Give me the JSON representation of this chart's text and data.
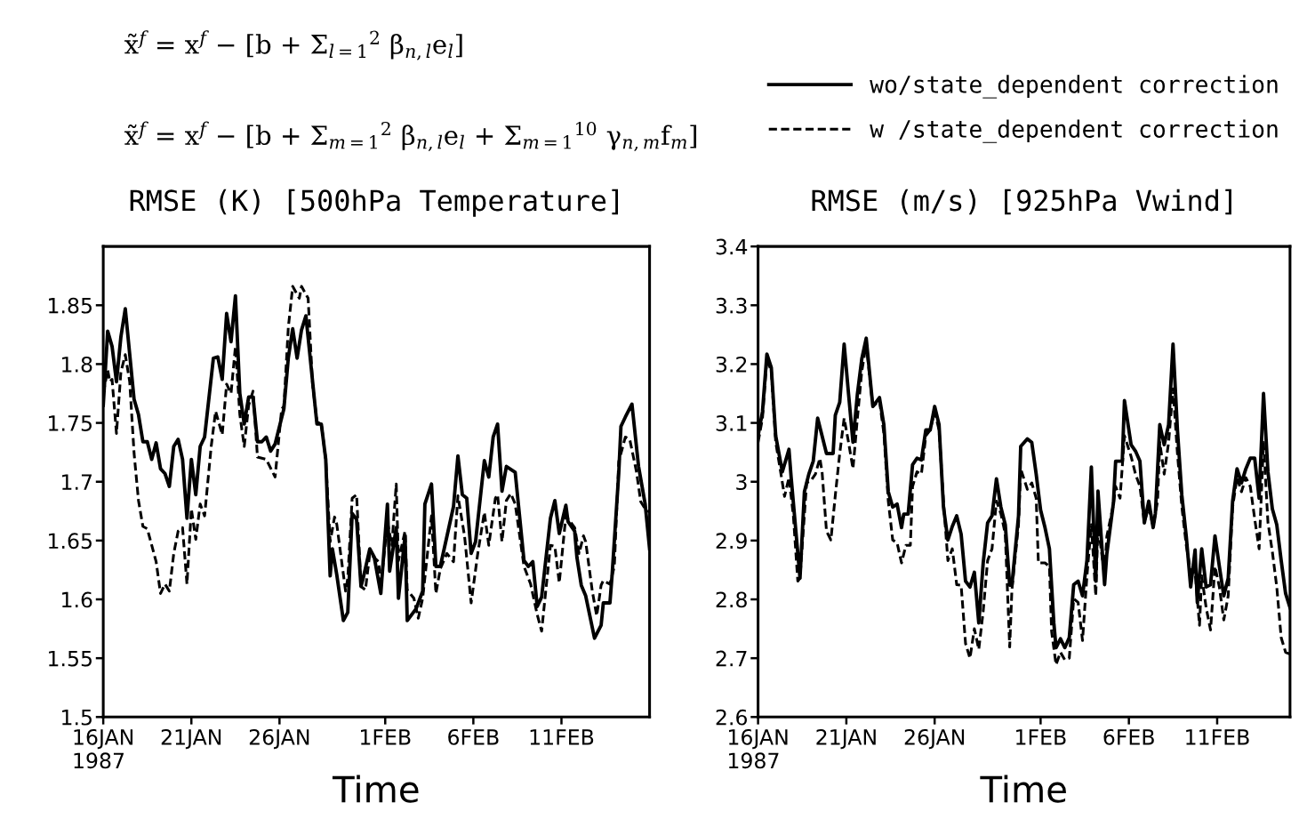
{
  "chart_data": [
    {
      "type": "line",
      "title": "RMSE (K) [500hPa Temperature]",
      "xlabel": "Time",
      "legend": "top right",
      "annotations": [
        "x̃$^{f}$ = x$^{f}$ − [b + Σ$_{l=1}$$^{2}$ β$_{n,l}$e$_{l}$]",
        "x̃$^{f}$ = x$^{f}$ − [b + Σ$_{m=1}$$^{2}$ β$_{n,l}$e$_{l}$ + Σ$_{m=1}$$^{10}$ γ$_{n,m}$f$_{m}$]"
      ],
      "xlim": [
        "1987-01-16T00:00",
        "1987-02-16T00:00"
      ],
      "xticks": [
        {
          "value": "1987-01-16",
          "label": "16JAN\n1987"
        },
        {
          "value": "1987-01-21",
          "label": "21JAN"
        },
        {
          "value": "1987-01-26",
          "label": "26JAN"
        },
        {
          "value": "1987-02-01",
          "label": "1FEB"
        },
        {
          "value": "1987-02-06",
          "label": "6FEB"
        },
        {
          "value": "1987-02-11",
          "label": "11FEB"
        }
      ],
      "ylim": [
        1.5,
        1.9
      ],
      "yticks": [
        1.5,
        1.55,
        1.6,
        1.65,
        1.7,
        1.75,
        1.8,
        1.85
      ],
      "grid": false,
      "series": [
        {
          "name": "wo/state_dependent correction",
          "color": "#000000",
          "line_style": "solid",
          "x": [
            "1987-01-16T00:00",
            "1987-01-16T06:00",
            "1987-01-16T12:00",
            "1987-01-16T18:00",
            "1987-01-17T00:00",
            "1987-01-17T06:00",
            "1987-01-17T18:00",
            "1987-01-18T00:00",
            "1987-01-18T06:00",
            "1987-01-18T12:00",
            "1987-01-18T18:00",
            "1987-01-19T00:00",
            "1987-01-19T06:00",
            "1987-01-19T12:00",
            "1987-01-19T18:00",
            "1987-01-20T00:00",
            "1987-01-20T06:00",
            "1987-01-20T12:00",
            "1987-01-20T18:00",
            "1987-01-21T00:00",
            "1987-01-21T06:00",
            "1987-01-21T12:00",
            "1987-01-21T18:00",
            "1987-01-22T06:00",
            "1987-01-22T12:00",
            "1987-01-22T18:00",
            "1987-01-23T00:00",
            "1987-01-23T06:00",
            "1987-01-23T12:00",
            "1987-01-23T18:00",
            "1987-01-24T00:00",
            "1987-01-24T06:00",
            "1987-01-24T12:00",
            "1987-01-24T18:00",
            "1987-01-25T00:00",
            "1987-01-25T06:00",
            "1987-01-25T12:00",
            "1987-01-25T18:00",
            "1987-01-26T06:00",
            "1987-01-26T12:00",
            "1987-01-26T18:00",
            "1987-01-27T00:00",
            "1987-01-27T06:00",
            "1987-01-27T12:00",
            "1987-01-28T03:00",
            "1987-01-28T09:00",
            "1987-01-28T15:00",
            "1987-01-28T21:00",
            "1987-01-29T00:00",
            "1987-01-29T06:00",
            "1987-01-29T15:00",
            "1987-01-29T21:00",
            "1987-01-30T03:00",
            "1987-01-30T09:00",
            "1987-01-30T15:00",
            "1987-01-30T18:00",
            "1987-01-31T03:00",
            "1987-01-31T09:00",
            "1987-01-31T18:00",
            "1987-02-01T03:00",
            "1987-02-01T06:00",
            "1987-02-01T15:00",
            "1987-02-01T18:00",
            "1987-02-02T03:00",
            "1987-02-02T06:00",
            "1987-02-02T18:00",
            "1987-02-03T03:00",
            "1987-02-03T06:00",
            "1987-02-03T15:00",
            "1987-02-03T21:00",
            "1987-02-04T03:00",
            "1987-02-04T21:00",
            "1987-02-05T03:00",
            "1987-02-05T09:00",
            "1987-02-05T15:00",
            "1987-02-05T21:00",
            "1987-02-06T03:00",
            "1987-02-06T15:00",
            "1987-02-06T21:00",
            "1987-02-07T03:00",
            "1987-02-07T09:00",
            "1987-02-07T15:00",
            "1987-02-07T21:00",
            "1987-02-08T09:00",
            "1987-02-08T21:00",
            "1987-02-09T03:00",
            "1987-02-09T09:00",
            "1987-02-09T15:00",
            "1987-02-09T21:00",
            "1987-02-10T09:00",
            "1987-02-10T15:00",
            "1987-02-10T21:00",
            "1987-02-11T06:00",
            "1987-02-11T09:00",
            "1987-02-11T18:00",
            "1987-02-11T21:00",
            "1987-02-12T03:00",
            "1987-02-12T09:00",
            "1987-02-12T21:00",
            "1987-02-13T06:00",
            "1987-02-13T09:00",
            "1987-02-13T18:00",
            "1987-02-13T21:00",
            "1987-02-14T06:00",
            "1987-02-14T09:00",
            "1987-02-14T15:00",
            "1987-02-15T00:00",
            "1987-02-15T09:00",
            "1987-02-15T18:00",
            "1987-02-16T00:00"
          ],
          "values": [
            1.765,
            1.828,
            1.815,
            1.785,
            1.823,
            1.847,
            1.77,
            1.757,
            1.734,
            1.734,
            1.719,
            1.733,
            1.711,
            1.707,
            1.696,
            1.73,
            1.736,
            1.719,
            1.669,
            1.719,
            1.689,
            1.73,
            1.738,
            1.805,
            1.806,
            1.787,
            1.843,
            1.819,
            1.858,
            1.775,
            1.749,
            1.772,
            1.772,
            1.734,
            1.734,
            1.738,
            1.726,
            1.732,
            1.762,
            1.805,
            1.83,
            1.805,
            1.829,
            1.841,
            1.749,
            1.749,
            1.719,
            1.62,
            1.643,
            1.621,
            1.582,
            1.589,
            1.673,
            1.668,
            1.611,
            1.618,
            1.643,
            1.636,
            1.605,
            1.681,
            1.624,
            1.661,
            1.601,
            1.654,
            1.582,
            1.592,
            1.607,
            1.681,
            1.698,
            1.628,
            1.628,
            1.679,
            1.722,
            1.689,
            1.686,
            1.639,
            1.649,
            1.718,
            1.704,
            1.738,
            1.749,
            1.692,
            1.713,
            1.708,
            1.633,
            1.628,
            1.632,
            1.594,
            1.602,
            1.669,
            1.684,
            1.656,
            1.68,
            1.666,
            1.658,
            1.636,
            1.612,
            1.603,
            1.567,
            1.578,
            1.597,
            1.597,
            1.621,
            1.707,
            1.747,
            1.755,
            1.766,
            1.713,
            1.681,
            1.643
          ]
        },
        {
          "name": "w /state_dependent correction",
          "color": "#000000",
          "line_style": "dashed",
          "x": [
            "1987-01-16T00:00",
            "1987-01-16T06:00",
            "1987-01-16T09:00",
            "1987-01-16T12:00",
            "1987-01-16T18:00",
            "1987-01-17T00:00",
            "1987-01-17T06:00",
            "1987-01-17T12:00",
            "1987-01-17T18:00",
            "1987-01-18T00:00",
            "1987-01-18T06:00",
            "1987-01-18T12:00",
            "1987-01-18T18:00",
            "1987-01-19T00:00",
            "1987-01-19T06:00",
            "1987-01-19T12:00",
            "1987-01-19T18:00",
            "1987-01-20T00:00",
            "1987-01-20T06:00",
            "1987-01-20T12:00",
            "1987-01-20T18:00",
            "1987-01-21T00:00",
            "1987-01-21T06:00",
            "1987-01-21T12:00",
            "1987-01-21T18:00",
            "1987-01-22T03:00",
            "1987-01-22T09:00",
            "1987-01-22T18:00",
            "1987-01-23T00:00",
            "1987-01-23T06:00",
            "1987-01-23T12:00",
            "1987-01-23T18:00",
            "1987-01-24T00:00",
            "1987-01-24T06:00",
            "1987-01-24T12:00",
            "1987-01-24T18:00",
            "1987-01-25T06:00",
            "1987-01-25T18:00",
            "1987-01-26T03:00",
            "1987-01-26T06:00",
            "1987-01-26T12:00",
            "1987-01-26T18:00",
            "1987-01-27T03:00",
            "1987-01-27T06:00",
            "1987-01-27T15:00",
            "1987-01-27T21:00",
            "1987-01-28T03:00",
            "1987-01-28T09:00",
            "1987-01-28T15:00",
            "1987-01-28T21:00",
            "1987-01-29T03:00",
            "1987-01-29T06:00",
            "1987-01-29T18:00",
            "1987-01-29T21:00",
            "1987-01-30T03:00",
            "1987-01-30T09:00",
            "1987-01-30T15:00",
            "1987-01-30T21:00",
            "1987-01-31T03:00",
            "1987-01-31T15:00",
            "1987-01-31T18:00",
            "1987-02-01T03:00",
            "1987-02-01T09:00",
            "1987-02-01T15:00",
            "1987-02-01T18:00",
            "1987-02-02T03:00",
            "1987-02-02T06:00",
            "1987-02-02T15:00",
            "1987-02-02T21:00",
            "1987-02-03T03:00",
            "1987-02-03T15:00",
            "1987-02-03T21:00",
            "1987-02-04T03:00",
            "1987-02-04T12:00",
            "1987-02-04T21:00",
            "1987-02-05T03:00",
            "1987-02-05T12:00",
            "1987-02-05T21:00",
            "1987-02-06T06:00",
            "1987-02-06T15:00",
            "1987-02-06T21:00",
            "1987-02-07T06:00",
            "1987-02-07T09:00",
            "1987-02-07T15:00",
            "1987-02-07T21:00",
            "1987-02-08T03:00",
            "1987-02-08T09:00",
            "1987-02-08T21:00",
            "1987-02-09T06:00",
            "1987-02-09T15:00",
            "1987-02-09T21:00",
            "1987-02-10T09:00",
            "1987-02-10T15:00",
            "1987-02-10T21:00",
            "1987-02-11T06:00",
            "1987-02-11T12:00",
            "1987-02-11T18:00",
            "1987-02-12T00:00",
            "1987-02-12T06:00",
            "1987-02-12T09:00",
            "1987-02-12T18:00",
            "1987-02-13T00:00",
            "1987-02-13T06:00",
            "1987-02-13T09:00",
            "1987-02-13T18:00",
            "1987-02-14T00:00",
            "1987-02-14T06:00",
            "1987-02-14T15:00",
            "1987-02-14T21:00",
            "1987-02-15T06:00",
            "1987-02-15T12:00",
            "1987-02-15T18:00",
            "1987-02-16T00:00"
          ],
          "values": [
            1.775,
            1.795,
            1.785,
            1.787,
            1.741,
            1.793,
            1.808,
            1.785,
            1.724,
            1.684,
            1.662,
            1.66,
            1.646,
            1.632,
            1.605,
            1.613,
            1.607,
            1.639,
            1.658,
            1.661,
            1.613,
            1.677,
            1.651,
            1.681,
            1.671,
            1.73,
            1.76,
            1.74,
            1.783,
            1.775,
            1.815,
            1.757,
            1.73,
            1.765,
            1.777,
            1.721,
            1.719,
            1.704,
            1.762,
            1.764,
            1.831,
            1.866,
            1.856,
            1.866,
            1.856,
            1.783,
            1.751,
            1.749,
            1.719,
            1.649,
            1.67,
            1.664,
            1.607,
            1.618,
            1.686,
            1.689,
            1.611,
            1.608,
            1.639,
            1.632,
            1.611,
            1.666,
            1.646,
            1.698,
            1.633,
            1.658,
            1.608,
            1.601,
            1.584,
            1.601,
            1.671,
            1.605,
            1.626,
            1.639,
            1.632,
            1.688,
            1.654,
            1.597,
            1.639,
            1.674,
            1.646,
            1.686,
            1.689,
            1.649,
            1.684,
            1.69,
            1.681,
            1.628,
            1.613,
            1.587,
            1.573,
            1.646,
            1.645,
            1.614,
            1.671,
            1.666,
            1.661,
            1.639,
            1.654,
            1.649,
            1.607,
            1.586,
            1.612,
            1.616,
            1.613,
            1.628,
            1.717,
            1.738,
            1.736,
            1.709,
            1.683,
            1.677,
            1.674
          ]
        }
      ]
    },
    {
      "type": "line",
      "title": "RMSE (m/s) [925hPa Vwind]",
      "xlabel": "Time",
      "xlim": [
        "1987-01-16T00:00",
        "1987-02-15T03:00"
      ],
      "xticks": [
        {
          "value": "1987-01-16",
          "label": "16JAN\n1987"
        },
        {
          "value": "1987-01-21",
          "label": "21JAN"
        },
        {
          "value": "1987-01-26",
          "label": "26JAN"
        },
        {
          "value": "1987-02-01",
          "label": "1FEB"
        },
        {
          "value": "1987-02-06",
          "label": "6FEB"
        },
        {
          "value": "1987-02-11",
          "label": "11FEB"
        }
      ],
      "ylim": [
        2.6,
        3.4
      ],
      "yticks": [
        2.6,
        2.7,
        2.8,
        2.9,
        3,
        3.1,
        3.2,
        3.3,
        3.4
      ],
      "grid": false,
      "series": [
        {
          "color": "#000000",
          "line_style": "solid",
          "x": [
            "1987-01-16T00:00",
            "1987-01-16T06:00",
            "1987-01-16T12:00",
            "1987-01-16T18:00",
            "1987-01-17T00:00",
            "1987-01-17T09:00",
            "1987-01-17T18:00",
            "1987-01-17T21:00",
            "1987-01-18T09:00",
            "1987-01-18T15:00",
            "1987-01-18T21:00",
            "1987-01-19T03:00",
            "1987-01-19T09:00",
            "1987-01-19T21:00",
            "1987-01-20T06:00",
            "1987-01-20T09:00",
            "1987-01-20T15:00",
            "1987-01-20T21:00",
            "1987-01-21T03:00",
            "1987-01-21T09:00",
            "1987-01-21T15:00",
            "1987-01-21T21:00",
            "1987-01-22T03:00",
            "1987-01-22T12:00",
            "1987-01-22T21:00",
            "1987-01-23T03:00",
            "1987-01-23T09:00",
            "1987-01-23T15:00",
            "1987-01-23T21:00",
            "1987-01-24T03:00",
            "1987-01-24T06:00",
            "1987-01-24T12:00",
            "1987-01-24T18:00",
            "1987-01-25T00:00",
            "1987-01-25T06:00",
            "1987-01-25T12:00",
            "1987-01-25T18:00",
            "1987-01-26T00:00",
            "1987-01-26T06:00",
            "1987-01-26T12:00",
            "1987-01-26T18:00",
            "1987-01-27T00:00",
            "1987-01-27T06:00",
            "1987-01-27T12:00",
            "1987-01-27T18:00",
            "1987-01-28T00:00",
            "1987-01-28T06:00",
            "1987-01-28T12:00",
            "1987-01-28T18:00",
            "1987-01-29T00:00",
            "1987-01-29T06:00",
            "1987-01-29T12:00",
            "1987-01-29T18:00",
            "1987-01-30T00:00",
            "1987-01-30T06:00",
            "1987-01-30T09:00",
            "1987-01-30T18:00",
            "1987-01-30T21:00",
            "1987-01-31T06:00",
            "1987-01-31T12:00",
            "1987-01-31T18:00",
            "1987-02-01T00:00",
            "1987-02-01T06:00",
            "1987-02-01T12:00",
            "1987-02-01T18:00",
            "1987-02-01T21:00",
            "1987-02-02T03:00",
            "1987-02-02T09:00",
            "1987-02-02T15:00",
            "1987-02-02T21:00",
            "1987-02-03T03:00",
            "1987-02-03T09:00",
            "1987-02-03T15:00",
            "1987-02-03T21:00",
            "1987-02-04T03:00",
            "1987-02-04T06:00",
            "1987-02-04T15:00",
            "1987-02-04T18:00",
            "1987-02-05T03:00",
            "1987-02-05T06:00",
            "1987-02-05T15:00",
            "1987-02-05T18:00",
            "1987-02-06T03:00",
            "1987-02-06T09:00",
            "1987-02-06T15:00",
            "1987-02-06T21:00",
            "1987-02-07T03:00",
            "1987-02-07T09:00",
            "1987-02-07T12:00",
            "1987-02-07T18:00",
            "1987-02-08T00:00",
            "1987-02-08T06:00",
            "1987-02-08T12:00",
            "1987-02-08T18:00",
            "1987-02-09T00:00",
            "1987-02-09T06:00",
            "1987-02-09T12:00",
            "1987-02-09T18:00",
            "1987-02-09T21:00",
            "1987-02-10T03:00",
            "1987-02-10T09:00",
            "1987-02-10T15:00",
            "1987-02-10T21:00",
            "1987-02-11T03:00",
            "1987-02-11T09:00",
            "1987-02-11T15:00",
            "1987-02-11T21:00",
            "1987-02-12T03:00",
            "1987-02-12T09:00",
            "1987-02-12T15:00",
            "1987-02-12T21:00",
            "1987-02-13T03:00",
            "1987-02-13T09:00",
            "1987-02-13T15:00",
            "1987-02-13T21:00",
            "1987-02-14T03:00",
            "1987-02-14T09:00",
            "1987-02-14T15:00",
            "1987-02-14T21:00",
            "1987-02-15T03:00"
          ],
          "values": [
            3.078,
            3.119,
            3.217,
            3.194,
            3.078,
            3.017,
            3.055,
            3.007,
            2.836,
            2.983,
            3.013,
            3.035,
            3.108,
            3.048,
            3.048,
            3.113,
            3.135,
            3.234,
            3.149,
            3.067,
            3.149,
            3.209,
            3.244,
            3.128,
            3.143,
            3.097,
            2.983,
            2.957,
            2.962,
            2.922,
            2.945,
            2.945,
            3.029,
            3.04,
            3.037,
            3.088,
            3.088,
            3.128,
            3.097,
            2.957,
            2.901,
            2.924,
            2.942,
            2.911,
            2.831,
            2.821,
            2.846,
            2.76,
            2.862,
            2.93,
            2.942,
            3.005,
            2.957,
            2.927,
            2.824,
            2.824,
            2.942,
            3.06,
            3.073,
            3.067,
            3.013,
            2.952,
            2.922,
            2.886,
            2.76,
            2.718,
            2.733,
            2.718,
            2.735,
            2.825,
            2.831,
            2.806,
            2.866,
            3.025,
            2.831,
            2.984,
            2.825,
            2.877,
            2.964,
            3.035,
            3.035,
            3.138,
            3.063,
            3.052,
            3.035,
            2.93,
            2.967,
            2.922,
            2.946,
            3.097,
            3.063,
            3.097,
            3.234,
            3.088,
            2.977,
            2.907,
            2.821,
            2.884,
            2.795,
            2.886,
            2.821,
            2.825,
            2.908,
            2.856,
            2.806,
            2.836,
            2.967,
            3.022,
            2.998,
            3.022,
            3.04,
            3.04,
            2.972,
            3.15,
            3.017,
            2.954,
            2.927,
            2.866,
            2.81,
            2.786
          ]
        },
        {
          "color": "#000000",
          "line_style": "dashed",
          "x": [
            "1987-01-16T00:00",
            "1987-01-16T06:00",
            "1987-01-16T12:00",
            "1987-01-16T18:00",
            "1987-01-17T00:00",
            "1987-01-17T06:00",
            "1987-01-17T12:00",
            "1987-01-17T18:00",
            "1987-01-18T00:00",
            "1987-01-18T06:00",
            "1987-01-18T09:00",
            "1987-01-18T18:00",
            "1987-01-19T00:00",
            "1987-01-19T06:00",
            "1987-01-19T12:00",
            "1987-01-19T15:00",
            "1987-01-19T21:00",
            "1987-01-20T03:00",
            "1987-01-20T09:00",
            "1987-01-20T15:00",
            "1987-01-20T21:00",
            "1987-01-21T03:00",
            "1987-01-21T09:00",
            "1987-01-21T15:00",
            "1987-01-21T21:00",
            "1987-01-22T03:00",
            "1987-01-22T12:00",
            "1987-01-22T21:00",
            "1987-01-23T03:00",
            "1987-01-23T09:00",
            "1987-01-23T15:00",
            "1987-01-23T21:00",
            "1987-01-24T03:00",
            "1987-01-24T09:00",
            "1987-01-24T15:00",
            "1987-01-24T18:00",
            "1987-01-25T00:00",
            "1987-01-25T06:00",
            "1987-01-25T12:00",
            "1987-01-25T18:00",
            "1987-01-26T00:00",
            "1987-01-26T06:00",
            "1987-01-26T12:00",
            "1987-01-26T18:00",
            "1987-01-27T00:00",
            "1987-01-27T06:00",
            "1987-01-27T12:00",
            "1987-01-27T18:00",
            "1987-01-28T00:00",
            "1987-01-28T06:00",
            "1987-01-28T12:00",
            "1987-01-28T18:00",
            "1987-01-29T00:00",
            "1987-01-29T06:00",
            "1987-01-29T12:00",
            "1987-01-29T18:00",
            "1987-01-30T00:00",
            "1987-01-30T06:00",
            "1987-01-30T09:00",
            "1987-01-30T18:00",
            "1987-01-30T21:00",
            "1987-01-31T06:00",
            "1987-01-31T12:00",
            "1987-01-31T18:00",
            "1987-01-31T21:00",
            "1987-02-01T06:00",
            "1987-02-01T12:00",
            "1987-02-01T15:00",
            "1987-02-01T21:00",
            "1987-02-02T03:00",
            "1987-02-02T09:00",
            "1987-02-02T15:00",
            "1987-02-02T21:00",
            "1987-02-03T03:00",
            "1987-02-03T09:00",
            "1987-02-03T15:00",
            "1987-02-03T21:00",
            "1987-02-04T03:00",
            "1987-02-04T06:00",
            "1987-02-04T15:00",
            "1987-02-04T18:00",
            "1987-02-05T03:00",
            "1987-02-05T06:00",
            "1987-02-05T12:00",
            "1987-02-05T18:00",
            "1987-02-06T03:00",
            "1987-02-06T09:00",
            "1987-02-06T15:00",
            "1987-02-06T21:00",
            "1987-02-07T03:00",
            "1987-02-07T09:00",
            "1987-02-07T15:00",
            "1987-02-07T18:00",
            "1987-02-08T00:00",
            "1987-02-08T06:00",
            "1987-02-08T12:00",
            "1987-02-08T18:00",
            "1987-02-09T00:00",
            "1987-02-09T06:00",
            "1987-02-09T12:00",
            "1987-02-09T18:00",
            "1987-02-10T00:00",
            "1987-02-10T03:00",
            "1987-02-10T09:00",
            "1987-02-10T15:00",
            "1987-02-10T21:00",
            "1987-02-11T03:00",
            "1987-02-11T09:00",
            "1987-02-11T15:00",
            "1987-02-11T21:00",
            "1987-02-12T03:00",
            "1987-02-12T09:00",
            "1987-02-12T15:00",
            "1987-02-12T21:00",
            "1987-02-13T03:00",
            "1987-02-13T09:00",
            "1987-02-13T15:00",
            "1987-02-13T21:00",
            "1987-02-14T03:00",
            "1987-02-14T09:00",
            "1987-02-14T15:00",
            "1987-02-14T21:00",
            "1987-02-15T03:00"
          ],
          "values": [
            3.067,
            3.108,
            3.209,
            3.188,
            3.067,
            3.022,
            2.975,
            3.007,
            2.942,
            2.831,
            2.836,
            2.998,
            3.002,
            3.013,
            3.04,
            3.017,
            2.916,
            2.901,
            2.977,
            3.048,
            3.108,
            3.067,
            3.022,
            3.108,
            3.188,
            3.234,
            3.128,
            3.138,
            3.082,
            2.967,
            2.901,
            2.896,
            2.862,
            2.892,
            2.892,
            2.992,
            3.017,
            3.013,
            3.078,
            3.088,
            3.119,
            3.088,
            2.967,
            2.866,
            2.886,
            2.825,
            2.824,
            2.725,
            2.7,
            2.75,
            2.715,
            2.78,
            2.866,
            2.886,
            2.967,
            2.946,
            2.911,
            2.719,
            2.816,
            2.927,
            3.022,
            2.987,
            2.998,
            2.972,
            2.862,
            2.862,
            2.856,
            2.745,
            2.689,
            2.71,
            2.697,
            2.7,
            2.801,
            2.795,
            2.73,
            2.84,
            2.927,
            2.806,
            2.927,
            2.84,
            2.907,
            2.961,
            2.992,
            2.972,
            3.078,
            3.043,
            3.013,
            2.992,
            2.931,
            2.957,
            2.924,
            2.967,
            3.067,
            3.013,
            3.067,
            3.158,
            3.048,
            2.957,
            2.892,
            2.846,
            2.846,
            2.756,
            2.84,
            2.786,
            2.748,
            2.856,
            2.821,
            2.765,
            2.806,
            2.957,
            3.007,
            2.983,
            3.007,
            2.992,
            2.937,
            2.886,
            3.067,
            2.931,
            2.881,
            2.821,
            2.735,
            2.71,
            2.707
          ]
        }
      ]
    }
  ]
}
